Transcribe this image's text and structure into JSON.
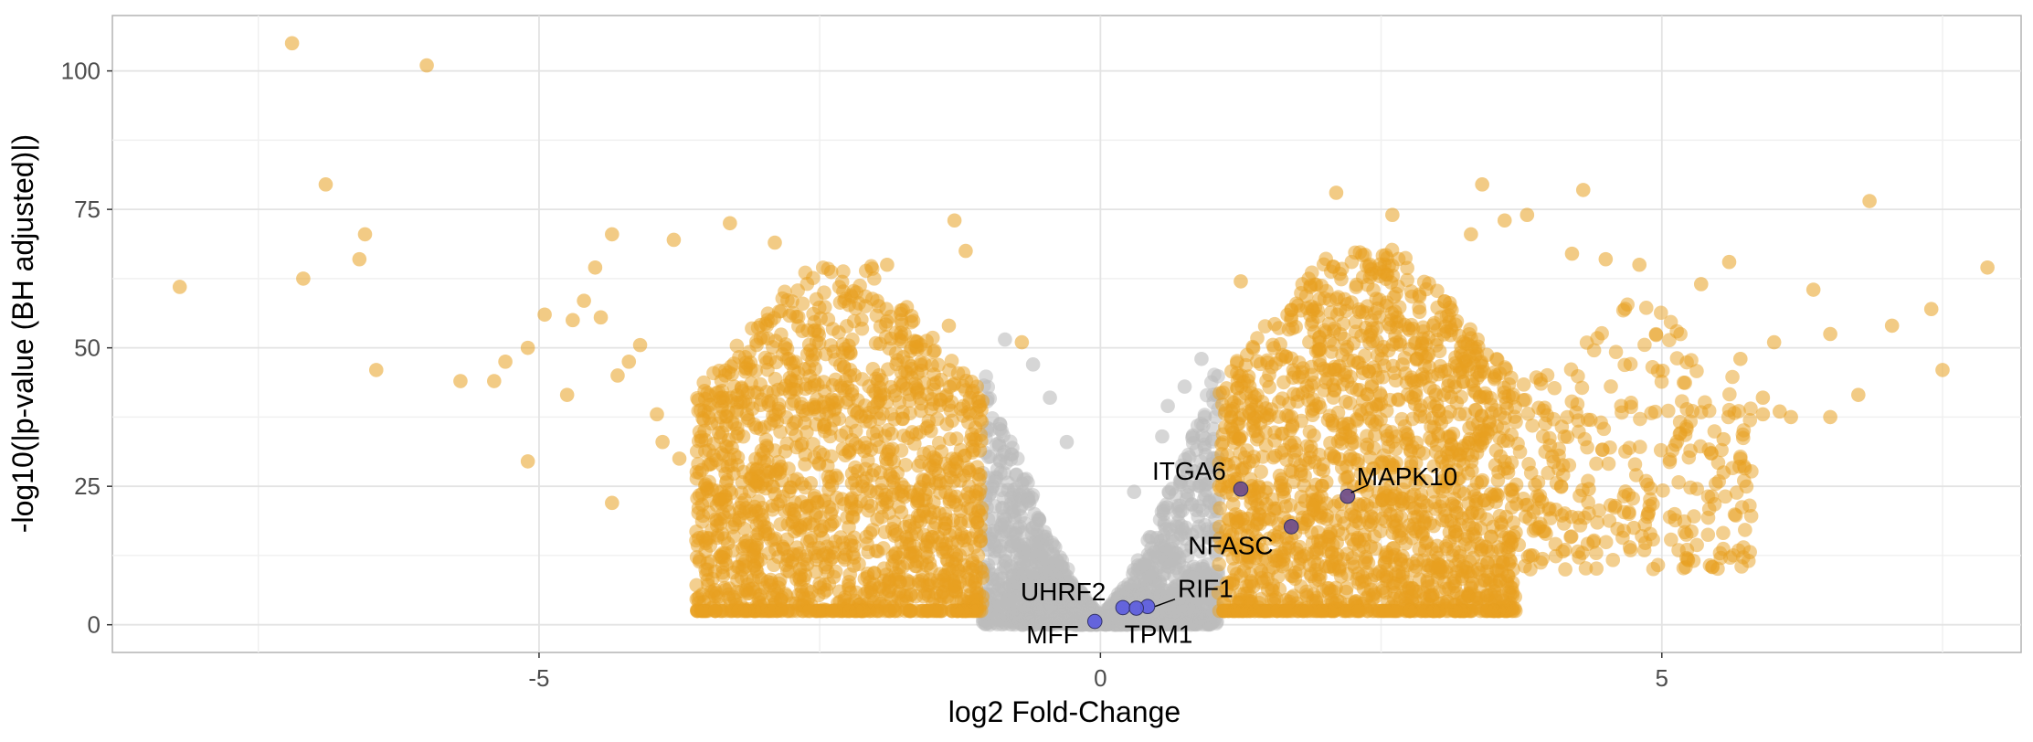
{
  "chart_data": {
    "type": "scatter",
    "xlabel": "log2 Fold-Change",
    "ylabel": "-log10(|p-value (BH adjusted)|)",
    "xlim": [
      -8.8,
      8.2
    ],
    "ylim": [
      -5,
      110
    ],
    "x_ticks": [
      -5,
      0,
      5
    ],
    "y_ticks": [
      0,
      25,
      50,
      75,
      100
    ],
    "x_tick_labels": [
      "-5",
      "0",
      "5"
    ],
    "y_tick_labels": [
      "0",
      "25",
      "50",
      "75",
      "100"
    ],
    "grid": true,
    "legend": "none",
    "colors": {
      "significant": "#E8A020",
      "not_significant": "#BBBBBB",
      "highlighted": "#5B5BE0",
      "highlighted_significant": "#6A4A8E"
    },
    "series": [
      {
        "group": "significant",
        "points": [
          [
            -8.2,
            61
          ],
          [
            -7.2,
            105
          ],
          [
            -7.1,
            62.5
          ],
          [
            -6.9,
            79.5
          ],
          [
            -6.6,
            66
          ],
          [
            -6.55,
            70.5
          ],
          [
            -6.45,
            46
          ],
          [
            -6.0,
            101
          ],
          [
            -5.7,
            44
          ],
          [
            -5.4,
            44
          ],
          [
            -5.3,
            47.5
          ],
          [
            -5.1,
            50
          ],
          [
            -5.1,
            29.5
          ],
          [
            -4.95,
            56
          ],
          [
            -4.75,
            41.5
          ],
          [
            -4.7,
            55
          ],
          [
            -4.6,
            58.5
          ],
          [
            -4.5,
            64.5
          ],
          [
            -4.45,
            55.5
          ],
          [
            -4.35,
            70.5
          ],
          [
            -4.35,
            22
          ],
          [
            -4.3,
            45
          ],
          [
            -4.2,
            47.5
          ],
          [
            -4.1,
            50.5
          ],
          [
            -3.95,
            38
          ],
          [
            -3.9,
            33
          ],
          [
            -3.8,
            69.5
          ],
          [
            -3.75,
            30
          ],
          [
            -3.3,
            72.5
          ],
          [
            -2.9,
            69
          ],
          [
            -1.9,
            65
          ],
          [
            -1.3,
            73
          ],
          [
            -1.2,
            67.5
          ],
          [
            -1.35,
            54
          ],
          [
            -0.7,
            51
          ]
        ]
      },
      {
        "group": "not_significant",
        "points": [
          [
            -0.85,
            51.5
          ],
          [
            -0.6,
            47
          ],
          [
            -0.45,
            41
          ],
          [
            -0.3,
            33
          ],
          [
            0.3,
            24
          ],
          [
            0.55,
            34
          ],
          [
            0.75,
            43
          ],
          [
            0.9,
            48
          ],
          [
            0.6,
            39.5
          ]
        ]
      },
      {
        "group": "significant",
        "points": [
          [
            1.25,
            62
          ],
          [
            2.1,
            78
          ],
          [
            2.6,
            74
          ],
          [
            3.3,
            70.5
          ],
          [
            3.4,
            79.5
          ],
          [
            3.6,
            73
          ],
          [
            3.8,
            74
          ],
          [
            4.3,
            78.5
          ],
          [
            4.2,
            67
          ],
          [
            4.5,
            66
          ],
          [
            4.8,
            65
          ],
          [
            5.35,
            61.5
          ],
          [
            5.6,
            65.5
          ],
          [
            6.35,
            60.5
          ],
          [
            6.5,
            52.5
          ],
          [
            6.85,
            76.5
          ],
          [
            7.05,
            54
          ],
          [
            7.4,
            57
          ],
          [
            7.5,
            46
          ],
          [
            7.9,
            64.5
          ],
          [
            6.5,
            37.5
          ],
          [
            6.15,
            37.5
          ],
          [
            6.05,
            38.5
          ],
          [
            5.9,
            38
          ],
          [
            5.7,
            48
          ],
          [
            5.9,
            41
          ],
          [
            6.0,
            51
          ],
          [
            6.75,
            41.5
          ],
          [
            5.55,
            27.5
          ],
          [
            5.55,
            33.5
          ],
          [
            5.7,
            30
          ],
          [
            4.75,
            17.5
          ],
          [
            4.35,
            24.5
          ],
          [
            4.0,
            21
          ],
          [
            3.85,
            12.5
          ],
          [
            3.9,
            17.5
          ]
        ]
      }
    ],
    "significant_bands": [
      {
        "x_range": [
          -3.6,
          -1.05
        ],
        "y_range": [
          0,
          65
        ],
        "count": 1600
      },
      {
        "x_range": [
          1.05,
          3.7
        ],
        "y_range": [
          0,
          68
        ],
        "count": 1800
      },
      {
        "x_range": [
          3.7,
          5.8
        ],
        "y_range": [
          10,
          60
        ],
        "count": 300
      }
    ],
    "null_cloud": {
      "x_range": [
        -1.05,
        1.05
      ],
      "count": 1500
    },
    "labeled_genes": [
      {
        "name": "ITGA6",
        "x": 1.25,
        "y": 24.5,
        "group": "highlighted_significant"
      },
      {
        "name": "MAPK10",
        "x": 2.2,
        "y": 23.2,
        "group": "highlighted_significant"
      },
      {
        "name": "NFASC",
        "x": 1.7,
        "y": 17.7,
        "group": "highlighted_significant"
      },
      {
        "name": "UHRF2",
        "x": 0.2,
        "y": 3.1,
        "group": "highlighted"
      },
      {
        "name": "RIF1",
        "x": 0.42,
        "y": 3.3,
        "group": "highlighted"
      },
      {
        "name": "TPM1",
        "x": 0.32,
        "y": 3.0,
        "group": "highlighted"
      },
      {
        "name": "MFF",
        "x": -0.05,
        "y": 0.6,
        "group": "highlighted"
      }
    ]
  }
}
